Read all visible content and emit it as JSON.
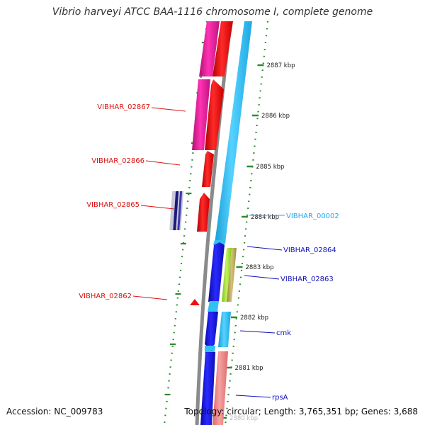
{
  "title": "Vibrio harveyi ATCC BAA-1116 chromosome I, complete genome",
  "footer": {
    "accession": "Accession: NC_009783",
    "stats": "Topology: circular; Length: 3,765,351 bp; Genes: 3,688"
  },
  "colors": {
    "forward_cds": "#ee1111",
    "forward_other": "#ee1199",
    "reverse_cds": "#1a1ae6",
    "reverse_other": "#33c1f2",
    "salmon": "#ef8484",
    "lime": "#9be22b",
    "olive": "#b9a955",
    "backbone": "#8a8a8a",
    "scale": "#2e8a2e",
    "label_red": "#dd1111",
    "label_blue": "#1111bb",
    "label_cyan": "#22aaee"
  },
  "scale_ticks": [
    "2887 kbp",
    "2886 kbp",
    "2885 kbp",
    "2884 kbp",
    "2883 kbp",
    "2882 kbp",
    "2881 kbp",
    "2880 kbp"
  ],
  "gene_labels": {
    "VIBHAR_02867": "VIBHAR_02867",
    "VIBHAR_02866": "VIBHAR_02866",
    "VIBHAR_02865": "VIBHAR_02865",
    "VIBHAR_02862": "VIBHAR_02862",
    "VIBHAR_00002": "VIBHAR_00002",
    "VIBHAR_02864": "VIBHAR_02864",
    "VIBHAR_02863": "VIBHAR_02863",
    "cmk": "cmk",
    "rpsA": "rpsA"
  }
}
